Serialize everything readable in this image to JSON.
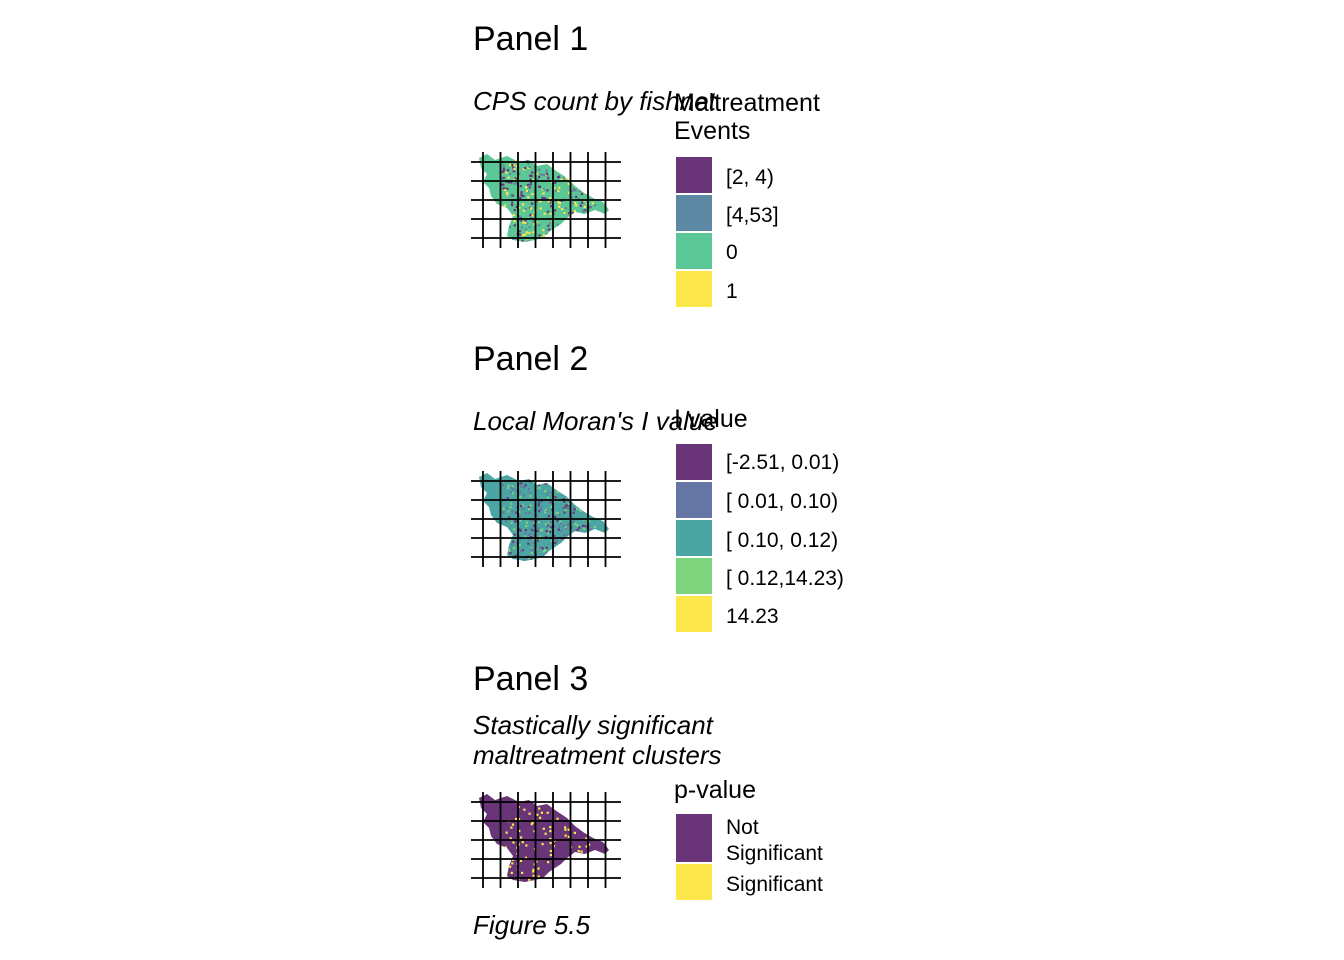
{
  "panels": [
    {
      "title": "Panel 1",
      "subtitle": "CPS count by fishnet",
      "legend": {
        "title": "Maltreatment\nEvents",
        "items": [
          {
            "label": "[2, 4)",
            "color": "#6a3479"
          },
          {
            "label": "[4,53]",
            "color": "#5c88a4"
          },
          {
            "label": "0",
            "color": "#5cc796"
          },
          {
            "label": "1",
            "color": "#fde84c"
          }
        ]
      },
      "map": {
        "fill": "#5cc796",
        "speckles": [
          "#6a3479",
          "#5c88a4",
          "#fde84c"
        ]
      }
    },
    {
      "title": "Panel 2",
      "subtitle": "Local Moran's I value",
      "legend": {
        "title": "I value",
        "items": [
          {
            "label": "[-2.51, 0.01)",
            "color": "#6a3479"
          },
          {
            "label": "[ 0.01, 0.10)",
            "color": "#6576a4"
          },
          {
            "label": "[ 0.10, 0.12)",
            "color": "#4ba6a3"
          },
          {
            "label": "[ 0.12,14.23)",
            "color": "#7dd47d"
          },
          {
            "label": "14.23",
            "color": "#fde84c"
          }
        ]
      },
      "map": {
        "fill": "#4ba6a3",
        "speckles": [
          "#6a3479",
          "#6576a4",
          "#7dd47d"
        ]
      }
    },
    {
      "title": "Panel 3",
      "subtitle": "Stastically significant\nmaltreatment clusters",
      "legend": {
        "title": "p-value",
        "items": [
          {
            "label": "Not\nSignificant",
            "color": "#6a3479"
          },
          {
            "label": "Significant",
            "color": "#fde84c"
          }
        ]
      },
      "map": {
        "fill": "#6a3479",
        "speckles": [
          "#fde84c"
        ]
      }
    }
  ],
  "caption": "Figure 5.5"
}
